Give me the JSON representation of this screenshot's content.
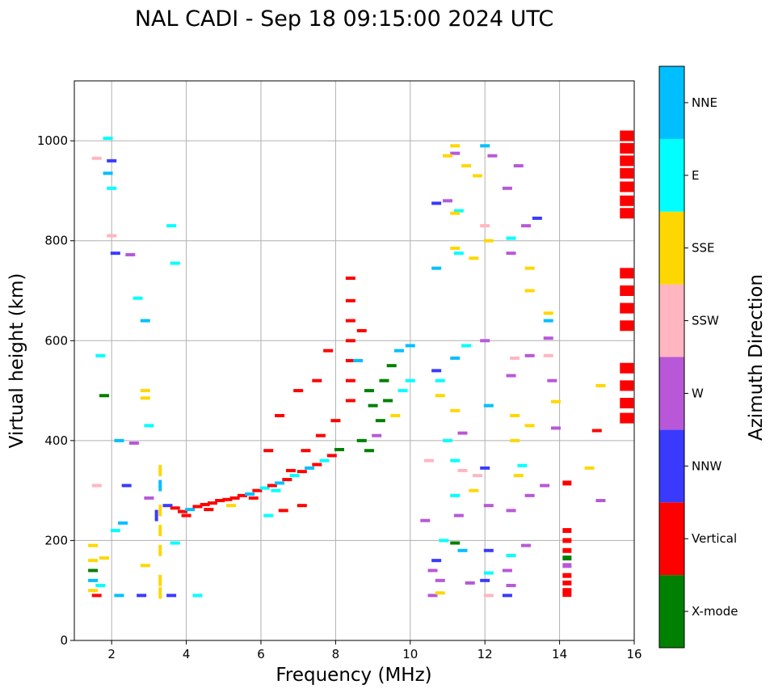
{
  "chart_data": {
    "type": "scatter",
    "title": "NAL CADI - Sep 18 09:15:00 2024 UTC",
    "xlabel": "Frequency (MHz)",
    "ylabel": "Virtual height (km)",
    "xlim": [
      1,
      16
    ],
    "ylim": [
      0,
      1120
    ],
    "xticks": [
      "2",
      "4",
      "6",
      "8",
      "10",
      "12",
      "14",
      "16"
    ],
    "yticks": [
      "0",
      "200",
      "400",
      "600",
      "800",
      "1000"
    ],
    "grid": true,
    "colorbar": {
      "label": "Azimuth Direction",
      "categories": [
        {
          "name": "X-mode",
          "color": "#008000"
        },
        {
          "name": "Vertical",
          "color": "#ff0000"
        },
        {
          "name": "NNW",
          "color": "#3a3aff"
        },
        {
          "name": "W",
          "color": "#b858d8"
        },
        {
          "name": "SSW",
          "color": "#ffb6c1"
        },
        {
          "name": "SSE",
          "color": "#ffd700"
        },
        {
          "name": "E",
          "color": "#00ffff"
        },
        {
          "name": "NNE",
          "color": "#00bfff"
        }
      ]
    },
    "series": [
      {
        "name": "echoes",
        "points": [
          [
            1.5,
            100,
            "SSE"
          ],
          [
            1.5,
            120,
            "NNE"
          ],
          [
            1.5,
            140,
            "X-mode"
          ],
          [
            1.5,
            160,
            "SSE"
          ],
          [
            1.5,
            190,
            "SSE"
          ],
          [
            1.6,
            90,
            "Vertical"
          ],
          [
            1.7,
            110,
            "E"
          ],
          [
            1.8,
            165,
            "SSE"
          ],
          [
            1.6,
            310,
            "SSW"
          ],
          [
            1.6,
            965,
            "SSW"
          ],
          [
            1.9,
            1005,
            "E"
          ],
          [
            2.0,
            960,
            "NNW"
          ],
          [
            1.9,
            935,
            "NNE"
          ],
          [
            2.0,
            905,
            "E"
          ],
          [
            2.0,
            810,
            "SSW"
          ],
          [
            2.1,
            775,
            "NNW"
          ],
          [
            2.5,
            772,
            "W"
          ],
          [
            2.7,
            685,
            "E"
          ],
          [
            2.9,
            640,
            "NNE"
          ],
          [
            1.8,
            490,
            "X-mode"
          ],
          [
            1.7,
            570,
            "E"
          ],
          [
            2.2,
            400,
            "NNE"
          ],
          [
            2.6,
            395,
            "W"
          ],
          [
            2.4,
            310,
            "NNW"
          ],
          [
            2.3,
            235,
            "NNE"
          ],
          [
            2.1,
            220,
            "E"
          ],
          [
            2.2,
            90,
            "NNE"
          ],
          [
            2.9,
            500,
            "SSE"
          ],
          [
            3.0,
            430,
            "E"
          ],
          [
            2.9,
            485,
            "SSE"
          ],
          [
            3.6,
            830,
            "E"
          ],
          [
            3.7,
            755,
            "E"
          ],
          [
            3.3,
            340,
            "SSE"
          ],
          [
            3.3,
            310,
            "NNE"
          ],
          [
            3.3,
            260,
            "SSE"
          ],
          [
            3.3,
            220,
            "SSE"
          ],
          [
            3.3,
            180,
            "SSE"
          ],
          [
            3.3,
            120,
            "SSE"
          ],
          [
            3.3,
            95,
            "SSE"
          ],
          [
            2.9,
            150,
            "SSE"
          ],
          [
            2.8,
            90,
            "NNW"
          ],
          [
            3.2,
            250,
            "NNW"
          ],
          [
            3.0,
            285,
            "W"
          ],
          [
            3.6,
            90,
            "NNW"
          ],
          [
            4.3,
            90,
            "E"
          ],
          [
            3.7,
            195,
            "E"
          ],
          [
            3.5,
            270,
            "NNW"
          ],
          [
            3.7,
            265,
            "Vertical"
          ],
          [
            3.9,
            258,
            "Vertical"
          ],
          [
            4.1,
            262,
            "NNE"
          ],
          [
            4.3,
            268,
            "Vertical"
          ],
          [
            4.5,
            272,
            "Vertical"
          ],
          [
            4.7,
            275,
            "Vertical"
          ],
          [
            4.9,
            280,
            "Vertical"
          ],
          [
            5.1,
            282,
            "Vertical"
          ],
          [
            5.3,
            285,
            "Vertical"
          ],
          [
            5.5,
            290,
            "Vertical"
          ],
          [
            5.7,
            293,
            "NNE"
          ],
          [
            5.9,
            300,
            "Vertical"
          ],
          [
            6.1,
            305,
            "E"
          ],
          [
            6.3,
            310,
            "Vertical"
          ],
          [
            6.5,
            315,
            "NNE"
          ],
          [
            6.7,
            322,
            "Vertical"
          ],
          [
            6.9,
            330,
            "E"
          ],
          [
            7.1,
            338,
            "Vertical"
          ],
          [
            7.3,
            345,
            "NNE"
          ],
          [
            7.5,
            352,
            "Vertical"
          ],
          [
            7.7,
            360,
            "E"
          ],
          [
            7.9,
            370,
            "Vertical"
          ],
          [
            8.1,
            382,
            "X-mode"
          ],
          [
            4.0,
            250,
            "Vertical"
          ],
          [
            4.6,
            262,
            "Vertical"
          ],
          [
            5.2,
            270,
            "SSE"
          ],
          [
            5.8,
            285,
            "Vertical"
          ],
          [
            6.4,
            300,
            "E"
          ],
          [
            6.8,
            340,
            "Vertical"
          ],
          [
            7.2,
            380,
            "Vertical"
          ],
          [
            7.6,
            410,
            "Vertical"
          ],
          [
            8.0,
            440,
            "Vertical"
          ],
          [
            8.4,
            480,
            "Vertical"
          ],
          [
            8.4,
            520,
            "Vertical"
          ],
          [
            8.4,
            560,
            "Vertical"
          ],
          [
            8.4,
            600,
            "Vertical"
          ],
          [
            8.4,
            640,
            "Vertical"
          ],
          [
            8.4,
            680,
            "Vertical"
          ],
          [
            8.4,
            725,
            "Vertical"
          ],
          [
            8.7,
            620,
            "Vertical"
          ],
          [
            8.6,
            560,
            "NNE"
          ],
          [
            8.9,
            500,
            "X-mode"
          ],
          [
            9.0,
            470,
            "X-mode"
          ],
          [
            9.2,
            440,
            "X-mode"
          ],
          [
            9.4,
            480,
            "X-mode"
          ],
          [
            9.3,
            520,
            "X-mode"
          ],
          [
            9.5,
            550,
            "X-mode"
          ],
          [
            9.7,
            580,
            "NNE"
          ],
          [
            9.1,
            410,
            "W"
          ],
          [
            9.6,
            450,
            "SSE"
          ],
          [
            9.8,
            500,
            "E"
          ],
          [
            10.0,
            520,
            "E"
          ],
          [
            10.0,
            590,
            "NNE"
          ],
          [
            7.8,
            580,
            "Vertical"
          ],
          [
            7.5,
            520,
            "Vertical"
          ],
          [
            7.0,
            500,
            "Vertical"
          ],
          [
            6.5,
            450,
            "Vertical"
          ],
          [
            6.2,
            380,
            "Vertical"
          ],
          [
            6.6,
            260,
            "Vertical"
          ],
          [
            7.1,
            270,
            "Vertical"
          ],
          [
            6.2,
            250,
            "E"
          ],
          [
            8.7,
            400,
            "X-mode"
          ],
          [
            8.9,
            380,
            "X-mode"
          ],
          [
            11.2,
            990,
            "SSE"
          ],
          [
            11.2,
            975,
            "W"
          ],
          [
            11.0,
            970,
            "SSE"
          ],
          [
            11.5,
            950,
            "SSE"
          ],
          [
            11.8,
            930,
            "SSE"
          ],
          [
            11.0,
            880,
            "W"
          ],
          [
            11.3,
            860,
            "E"
          ],
          [
            10.7,
            875,
            "NNW"
          ],
          [
            11.2,
            855,
            "SSE"
          ],
          [
            11.2,
            785,
            "SSE"
          ],
          [
            11.3,
            775,
            "E"
          ],
          [
            10.7,
            745,
            "NNE"
          ],
          [
            11.7,
            765,
            "SSE"
          ],
          [
            12.0,
            830,
            "SSW"
          ],
          [
            12.1,
            800,
            "SSE"
          ],
          [
            12.2,
            970,
            "W"
          ],
          [
            12.0,
            990,
            "NNE"
          ],
          [
            12.6,
            905,
            "W"
          ],
          [
            12.9,
            950,
            "W"
          ],
          [
            13.1,
            830,
            "W"
          ],
          [
            13.4,
            845,
            "NNW"
          ],
          [
            12.7,
            805,
            "E"
          ],
          [
            12.7,
            775,
            "W"
          ],
          [
            13.2,
            745,
            "SSE"
          ],
          [
            13.2,
            700,
            "SSE"
          ],
          [
            13.7,
            655,
            "SSE"
          ],
          [
            13.7,
            640,
            "NNE"
          ],
          [
            13.7,
            605,
            "W"
          ],
          [
            13.7,
            570,
            "SSW"
          ],
          [
            13.8,
            520,
            "W"
          ],
          [
            13.9,
            478,
            "SSE"
          ],
          [
            13.9,
            425,
            "W"
          ],
          [
            13.2,
            430,
            "SSE"
          ],
          [
            13.2,
            570,
            "W"
          ],
          [
            12.8,
            565,
            "SSW"
          ],
          [
            12.7,
            530,
            "W"
          ],
          [
            12.8,
            450,
            "SSE"
          ],
          [
            12.8,
            400,
            "SSE"
          ],
          [
            12.0,
            600,
            "W"
          ],
          [
            12.1,
            470,
            "NNE"
          ],
          [
            11.5,
            590,
            "E"
          ],
          [
            11.2,
            565,
            "NNE"
          ],
          [
            10.8,
            520,
            "E"
          ],
          [
            10.8,
            490,
            "SSE"
          ],
          [
            11.2,
            460,
            "SSE"
          ],
          [
            11.4,
            415,
            "W"
          ],
          [
            11.0,
            400,
            "E"
          ],
          [
            10.7,
            540,
            "NNW"
          ],
          [
            10.5,
            360,
            "SSW"
          ],
          [
            11.2,
            360,
            "E"
          ],
          [
            11.4,
            340,
            "SSW"
          ],
          [
            11.8,
            330,
            "SSW"
          ],
          [
            12.0,
            345,
            "NNW"
          ],
          [
            11.7,
            300,
            "SSE"
          ],
          [
            11.2,
            290,
            "E"
          ],
          [
            11.3,
            250,
            "W"
          ],
          [
            12.1,
            270,
            "W"
          ],
          [
            12.7,
            260,
            "W"
          ],
          [
            13.2,
            290,
            "W"
          ],
          [
            13.6,
            310,
            "W"
          ],
          [
            12.9,
            330,
            "SSE"
          ],
          [
            13.0,
            350,
            "E"
          ],
          [
            14.8,
            345,
            "SSE"
          ],
          [
            14.2,
            315,
            "Vertical"
          ],
          [
            15.1,
            280,
            "W"
          ],
          [
            15.0,
            420,
            "Vertical"
          ],
          [
            15.1,
            510,
            "SSE"
          ],
          [
            10.4,
            240,
            "W"
          ],
          [
            10.9,
            200,
            "E"
          ],
          [
            11.2,
            195,
            "X-mode"
          ],
          [
            11.4,
            180,
            "NNE"
          ],
          [
            10.7,
            160,
            "NNW"
          ],
          [
            10.6,
            140,
            "W"
          ],
          [
            10.8,
            120,
            "W"
          ],
          [
            10.6,
            90,
            "W"
          ],
          [
            10.8,
            95,
            "SSE"
          ],
          [
            11.6,
            115,
            "W"
          ],
          [
            12.0,
            120,
            "NNW"
          ],
          [
            12.1,
            135,
            "E"
          ],
          [
            12.1,
            90,
            "SSW"
          ],
          [
            12.6,
            90,
            "NNW"
          ],
          [
            12.7,
            110,
            "W"
          ],
          [
            12.6,
            140,
            "W"
          ],
          [
            12.7,
            170,
            "E"
          ],
          [
            13.1,
            190,
            "W"
          ],
          [
            12.1,
            180,
            "NNW"
          ],
          [
            14.2,
            220,
            "Vertical"
          ],
          [
            14.2,
            200,
            "Vertical"
          ],
          [
            14.2,
            180,
            "Vertical"
          ],
          [
            14.2,
            165,
            "X-mode"
          ],
          [
            14.2,
            150,
            "W"
          ],
          [
            14.2,
            130,
            "Vertical"
          ],
          [
            14.2,
            115,
            "Vertical"
          ],
          [
            14.2,
            100,
            "Vertical"
          ],
          [
            14.2,
            92,
            "Vertical"
          ],
          [
            15.8,
            1010,
            "Vertical"
          ],
          [
            15.8,
            985,
            "Vertical"
          ],
          [
            15.8,
            960,
            "Vertical"
          ],
          [
            15.8,
            935,
            "Vertical"
          ],
          [
            15.8,
            908,
            "Vertical"
          ],
          [
            15.8,
            880,
            "Vertical"
          ],
          [
            15.8,
            855,
            "Vertical"
          ],
          [
            15.8,
            735,
            "Vertical"
          ],
          [
            15.8,
            700,
            "Vertical"
          ],
          [
            15.8,
            665,
            "Vertical"
          ],
          [
            15.8,
            630,
            "Vertical"
          ],
          [
            15.8,
            545,
            "Vertical"
          ],
          [
            15.8,
            510,
            "Vertical"
          ],
          [
            15.8,
            475,
            "Vertical"
          ],
          [
            15.8,
            445,
            "Vertical"
          ]
        ]
      }
    ]
  }
}
